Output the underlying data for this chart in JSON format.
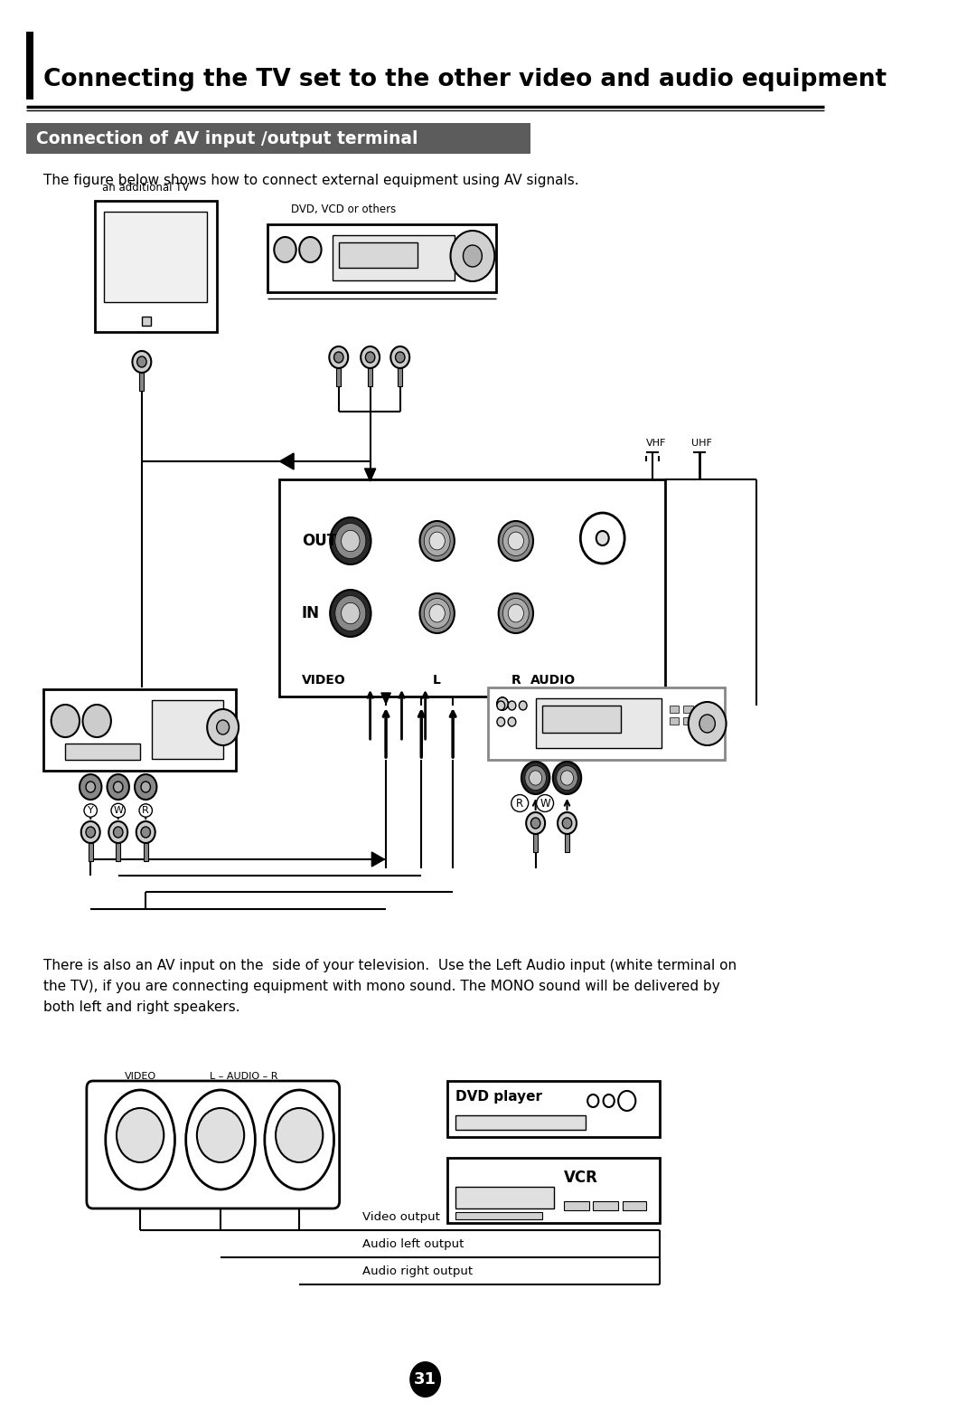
{
  "title_main": "Connecting the TV set to the other video and audio equipment",
  "title_sub": "Connection of AV input /output terminal",
  "para1": "The figure below shows how to connect external equipment using AV signals.",
  "label_additional_tv": "an additional TV",
  "label_dvd": "DVD, VCD or others",
  "label_vhf": "VHF",
  "label_uhf": "UHF",
  "label_out": "OUT",
  "label_in": "IN",
  "label_video": "VIDEO",
  "label_l": "L",
  "label_r": "R",
  "label_audio": "AUDIO",
  "para2": "There is also an AV input on the  side of your television.  Use the Left Audio input (white terminal on\nthe TV), if you are connecting equipment with mono sound. The MONO sound will be delivered by\nboth left and right speakers.",
  "label_video2": "VIDEO",
  "label_l_audio_r": "L – AUDIO – R",
  "label_dvd_player": "DVD player",
  "label_vcr": "VCR",
  "label_video_output": "Video output",
  "label_audio_left": "Audio left output",
  "label_audio_right": "Audio right output",
  "page_number": "31",
  "bg_color": "#ffffff"
}
